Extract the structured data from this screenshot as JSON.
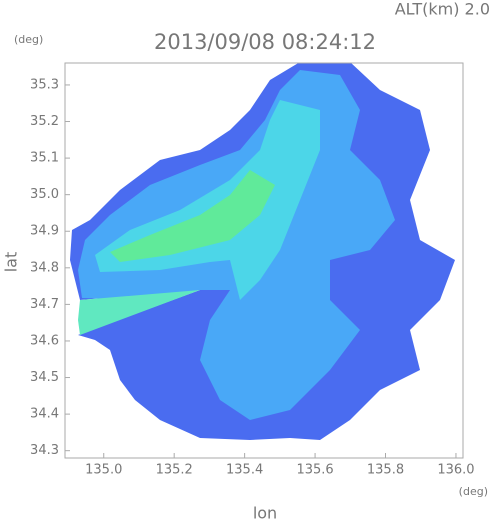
{
  "chart_data": {
    "type": "radar-map",
    "title": "2013/09/08 08:24:12",
    "annotation": "ALT(km) 2.0",
    "x_label": "lon",
    "y_label": "lat",
    "x_unit": "(deg)",
    "y_unit": "(deg)",
    "xlim": [
      134.89,
      136.02
    ],
    "ylim": [
      34.28,
      35.36
    ],
    "xticks": [
      {
        "value": 135,
        "label": "135.0"
      },
      135.2,
      135.4,
      135.6,
      135.8,
      {
        "value": 136,
        "label": "136.0"
      }
    ],
    "yticks": [
      {
        "value": 34.3,
        "label": "34.3"
      },
      34.4,
      34.5,
      34.6,
      34.7,
      34.8,
      34.9,
      {
        "value": 35,
        "label": "35.0"
      },
      35.1,
      35.2,
      35.3
    ]
  }
}
